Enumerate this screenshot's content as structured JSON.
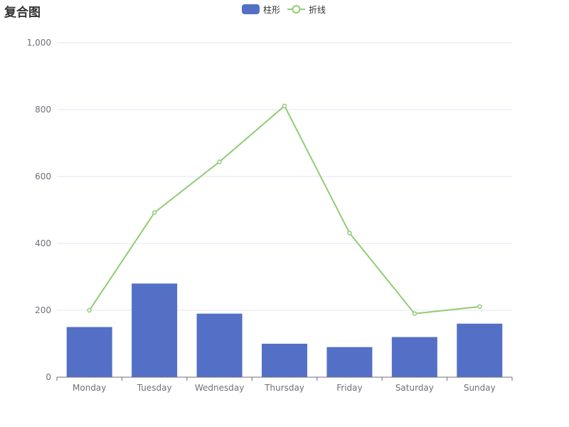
{
  "title": "复合图",
  "colors": {
    "bar": "#5470c6",
    "line": "#91cc75",
    "grid": "#e0e6f1",
    "axis": "#6e7079"
  },
  "legend": [
    {
      "name": "柱形",
      "kind": "bar"
    },
    {
      "name": "折线",
      "kind": "line"
    }
  ],
  "chart_data": {
    "type": "bar",
    "title": "复合图",
    "categories": [
      "Monday",
      "Tuesday",
      "Wednesday",
      "Thursday",
      "Friday",
      "Saturday",
      "Sunday"
    ],
    "series": [
      {
        "name": "柱形",
        "type": "bar",
        "values": [
          150,
          280,
          190,
          100,
          90,
          120,
          160
        ]
      },
      {
        "name": "折线",
        "type": "line",
        "values": [
          200,
          492,
          644,
          811,
          431,
          190,
          211
        ]
      }
    ],
    "ylim": [
      0,
      1000
    ],
    "yticks": [
      0,
      200,
      400,
      600,
      800,
      1000
    ],
    "ytick_labels": [
      "0",
      "200",
      "400",
      "600",
      "800",
      "1,000"
    ],
    "grid": true,
    "legend_position": "top-center"
  }
}
